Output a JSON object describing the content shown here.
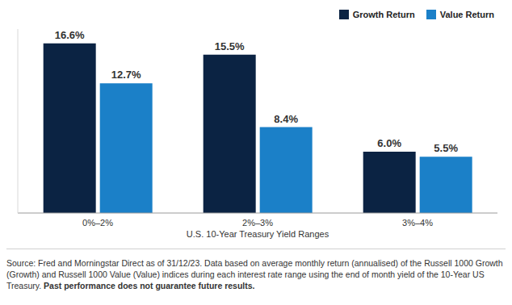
{
  "chart_data": {
    "type": "bar",
    "categories": [
      "0%–2%",
      "2%–3%",
      "3%–4%"
    ],
    "series": [
      {
        "name": "Growth Return",
        "color": "#0b2343",
        "values": [
          16.6,
          15.5,
          6.0
        ],
        "value_labels": [
          "16.6%",
          "15.5%",
          "6.0%"
        ]
      },
      {
        "name": "Value Return",
        "color": "#1b80c8",
        "values": [
          12.7,
          8.4,
          5.5
        ],
        "value_labels": [
          "12.7%",
          "8.4%",
          "5.5%"
        ]
      }
    ],
    "x_label": "U.S. 10-Year Treasury Yield Ranges",
    "ylim": [
      0,
      18
    ],
    "tick_labels": "x",
    "data_labels": true,
    "legend": "upper right",
    "grid": false,
    "annotations": [
      "Source: Fred and Morningstar Direct as of 31/12/23. Data based on average monthly return (annualised) of the Russell 1000 Growth (Growth) and Russell 1000 Value (Value) indices during each interest rate range using the end of month yield of the 10-Year US Treasury.",
      "Past performance does not guarantee future results."
    ]
  }
}
